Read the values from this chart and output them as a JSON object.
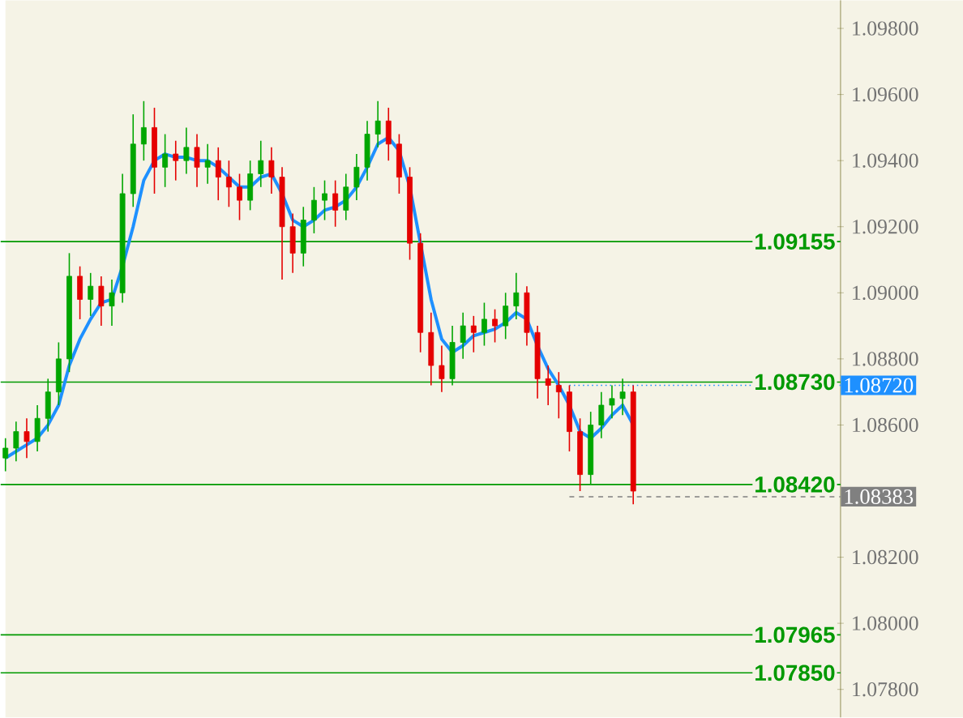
{
  "chart_data": {
    "type": "candlestick",
    "categories": [
      null,
      null,
      null,
      null,
      null,
      null,
      null,
      null,
      null,
      null,
      null,
      null,
      null,
      null,
      null,
      null,
      null,
      null,
      null,
      null,
      null,
      null,
      null,
      null,
      null,
      null,
      null,
      null,
      null,
      null,
      null,
      null,
      null,
      null,
      null,
      null,
      null,
      null,
      null,
      null,
      null,
      null,
      null,
      null,
      null,
      null,
      null,
      null,
      null,
      null,
      null,
      null,
      null,
      null,
      null,
      null,
      null,
      null,
      null,
      null
    ],
    "ohlc": [
      [
        1.085,
        1.0856,
        1.0846,
        1.0853
      ],
      [
        1.0853,
        1.0861,
        1.0849,
        1.0858
      ],
      [
        1.0858,
        1.0862,
        1.085,
        1.0855
      ],
      [
        1.0855,
        1.0866,
        1.0852,
        1.0862
      ],
      [
        1.0862,
        1.0874,
        1.0858,
        1.087
      ],
      [
        1.087,
        1.0885,
        1.0866,
        1.088
      ],
      [
        1.088,
        1.0912,
        1.0876,
        1.0905
      ],
      [
        1.0905,
        1.0908,
        1.0892,
        1.0898
      ],
      [
        1.0898,
        1.0906,
        1.0893,
        1.0902
      ],
      [
        1.0902,
        1.0905,
        1.089,
        1.0896
      ],
      [
        1.0896,
        1.0904,
        1.089,
        1.09
      ],
      [
        1.09,
        1.0936,
        1.0897,
        1.093
      ],
      [
        1.093,
        1.0954,
        1.0926,
        1.0945
      ],
      [
        1.0945,
        1.0958,
        1.094,
        1.095
      ],
      [
        1.095,
        1.0956,
        1.093,
        1.0938
      ],
      [
        1.0938,
        1.0948,
        1.0932,
        1.0942
      ],
      [
        1.0942,
        1.0946,
        1.0934,
        1.094
      ],
      [
        1.094,
        1.095,
        1.0936,
        1.0944
      ],
      [
        1.0944,
        1.0948,
        1.0932,
        1.0938
      ],
      [
        1.0938,
        1.0945,
        1.0933,
        1.094
      ],
      [
        1.094,
        1.0944,
        1.0928,
        1.0935
      ],
      [
        1.0935,
        1.094,
        1.0926,
        1.0932
      ],
      [
        1.0932,
        1.0936,
        1.0922,
        1.0928
      ],
      [
        1.0928,
        1.094,
        1.0925,
        1.0936
      ],
      [
        1.0936,
        1.0946,
        1.0932,
        1.094
      ],
      [
        1.094,
        1.0944,
        1.093,
        1.0935
      ],
      [
        1.0935,
        1.0938,
        1.0904,
        1.092
      ],
      [
        1.092,
        1.0924,
        1.0906,
        1.0912
      ],
      [
        1.0912,
        1.0926,
        1.0908,
        1.0922
      ],
      [
        1.0922,
        1.0932,
        1.0918,
        1.0928
      ],
      [
        1.0928,
        1.0934,
        1.0922,
        1.093
      ],
      [
        1.093,
        1.0934,
        1.092,
        1.0925
      ],
      [
        1.0925,
        1.0936,
        1.0922,
        1.0932
      ],
      [
        1.0932,
        1.0942,
        1.0928,
        1.0938
      ],
      [
        1.0938,
        1.0952,
        1.0934,
        1.0948
      ],
      [
        1.0948,
        1.0958,
        1.0944,
        1.0952
      ],
      [
        1.0952,
        1.0956,
        1.094,
        1.0945
      ],
      [
        1.0945,
        1.0948,
        1.093,
        1.0935
      ],
      [
        1.0935,
        1.0938,
        1.091,
        1.0915
      ],
      [
        1.0915,
        1.0918,
        1.0882,
        1.0888
      ],
      [
        1.0888,
        1.0894,
        1.0872,
        1.0878
      ],
      [
        1.0878,
        1.0884,
        1.087,
        1.0874
      ],
      [
        1.0874,
        1.089,
        1.0872,
        1.0885
      ],
      [
        1.0885,
        1.0894,
        1.088,
        1.089
      ],
      [
        1.089,
        1.0893,
        1.0882,
        1.0888
      ],
      [
        1.0888,
        1.0897,
        1.0884,
        1.0892
      ],
      [
        1.0892,
        1.0895,
        1.0885,
        1.089
      ],
      [
        1.089,
        1.09,
        1.0886,
        1.0896
      ],
      [
        1.0896,
        1.0906,
        1.0892,
        1.09
      ],
      [
        1.09,
        1.0902,
        1.0884,
        1.0888
      ],
      [
        1.0888,
        1.089,
        1.0868,
        1.0874
      ],
      [
        1.0874,
        1.0878,
        1.0866,
        1.0872
      ],
      [
        1.0872,
        1.0876,
        1.0862,
        1.087
      ],
      [
        1.087,
        1.0872,
        1.0852,
        1.0858
      ],
      [
        1.0858,
        1.0862,
        1.084,
        1.0845
      ],
      [
        1.0845,
        1.0864,
        1.0842,
        1.086
      ],
      [
        1.086,
        1.087,
        1.0856,
        1.0866
      ],
      [
        1.0866,
        1.0872,
        1.0862,
        1.0868
      ],
      [
        1.0868,
        1.0874,
        1.0863,
        1.087
      ],
      [
        1.087,
        1.0872,
        1.0836,
        1.084
      ]
    ],
    "series": [
      {
        "type": "line",
        "color": "#1e90ff",
        "values": [
          1.085,
          1.0852,
          1.0854,
          1.0856,
          1.086,
          1.0866,
          1.0878,
          1.0886,
          1.0892,
          1.0897,
          1.0898,
          1.0908,
          1.092,
          1.0934,
          1.094,
          1.0942,
          1.0941,
          1.0941,
          1.094,
          1.094,
          1.0938,
          1.0935,
          1.0932,
          1.0932,
          1.0935,
          1.0936,
          1.093,
          1.0922,
          1.092,
          1.0922,
          1.0925,
          1.0926,
          1.0928,
          1.0932,
          1.0938,
          1.0945,
          1.0947,
          1.0943,
          1.0932,
          1.0915,
          1.0898,
          1.0886,
          1.0882,
          1.0884,
          1.0887,
          1.0888,
          1.0889,
          1.0891,
          1.0894,
          1.0892,
          1.0884,
          1.0877,
          1.0872,
          1.0866,
          1.0858,
          1.0856,
          1.0859,
          1.0863,
          1.0866,
          1.086
        ]
      }
    ],
    "ylim": [
      1.07715,
      1.09885
    ],
    "yticks": [
      {
        "value": 1.078,
        "label": "1.07800"
      },
      {
        "value": 1.08,
        "label": "1.08000"
      },
      {
        "value": 1.082,
        "label": "1.08200"
      },
      {
        "value": 1.086,
        "label": "1.08600"
      },
      {
        "value": 1.088,
        "label": "1.08800"
      },
      {
        "value": 1.09,
        "label": "1.09000"
      },
      {
        "value": 1.092,
        "label": "1.09200"
      },
      {
        "value": 1.094,
        "label": "1.09400"
      },
      {
        "value": 1.096,
        "label": "1.09600"
      },
      {
        "value": 1.098,
        "label": "1.09800"
      }
    ],
    "ref_lines": [
      {
        "axis": "y",
        "value": 1.09155,
        "label": "1.09155",
        "color": "#009900",
        "line_style": "solid"
      },
      {
        "axis": "y",
        "value": 1.0873,
        "label": "1.08730",
        "color": "#009900",
        "line_style": "solid"
      },
      {
        "axis": "y",
        "value": 1.0842,
        "label": "1.08420",
        "color": "#009900",
        "line_style": "solid"
      },
      {
        "axis": "y",
        "value": 1.07965,
        "label": "1.07965",
        "color": "#009900",
        "line_style": "solid"
      },
      {
        "axis": "y",
        "value": 1.0785,
        "label": "1.07850",
        "color": "#009900",
        "line_style": "solid"
      },
      {
        "axis": "y",
        "value": 1.0872,
        "label": "1.08720",
        "color": "#1e90ff",
        "line_style": "dotted"
      },
      {
        "axis": "y",
        "value": 1.08383,
        "label": "1.08383",
        "color": "#808080",
        "line_style": "dashed"
      }
    ]
  }
}
